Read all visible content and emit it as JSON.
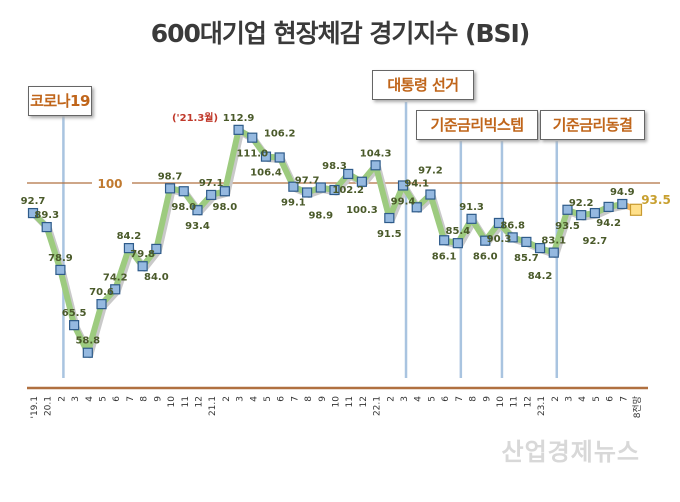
{
  "chart_data": {
    "type": "line",
    "title": "600대기업 현장체감 경기지수 (BSI)",
    "categories": [
      "'19.1",
      "20.1",
      "2",
      "3",
      "4",
      "5",
      "6",
      "7",
      "8",
      "9",
      "10",
      "11",
      "12",
      "21.1",
      "2",
      "3",
      "4",
      "5",
      "6",
      "7",
      "8",
      "9",
      "10",
      "11",
      "12",
      "22.1",
      "2",
      "3",
      "4",
      "5",
      "6",
      "7",
      "8",
      "9",
      "10",
      "11",
      "12",
      "23.1",
      "2",
      "3",
      "4",
      "5",
      "6",
      "7",
      "8전망"
    ],
    "values": [
      92.7,
      89.3,
      78.9,
      65.5,
      58.8,
      70.6,
      74.2,
      84.2,
      79.8,
      84.0,
      98.7,
      98.0,
      93.4,
      97.1,
      98.0,
      112.9,
      111.0,
      106.4,
      106.2,
      99.1,
      97.7,
      98.9,
      98.3,
      102.2,
      100.3,
      104.3,
      91.5,
      99.4,
      94.1,
      97.2,
      86.1,
      85.4,
      91.3,
      86.0,
      90.3,
      86.8,
      85.7,
      84.2,
      83.1,
      93.5,
      92.2,
      92.7,
      94.2,
      94.9,
      93.5
    ],
    "forecast_last_point": true,
    "ylim": [
      50,
      125
    ],
    "reference_line": {
      "value": 100,
      "label": "100",
      "color": "#b07a4a"
    },
    "peak_annotation": {
      "category_index": 15,
      "label": "('21.3월)",
      "color": "#c0392b"
    },
    "events": [
      {
        "label": "코로나19",
        "category_indices": [
          2
        ]
      },
      {
        "label": "대통령 선거",
        "category_indices": [
          27
        ]
      },
      {
        "label": "기준금리빅스텝",
        "category_indices": [
          31,
          34
        ]
      },
      {
        "label": "기준금리동결",
        "category_indices": [
          38
        ]
      }
    ],
    "colors": {
      "line": "#9dcb7f",
      "marker": "#95b9e0",
      "marker_border": "#2e5b8a",
      "forecast_marker": "#ffe08a",
      "forecast_line": "#f4b860",
      "label": "#4a5a2a",
      "event_label": "#c0651a",
      "axis": "#b07040",
      "event_line": "#a9c4e0"
    },
    "grid": false,
    "legend": "none"
  },
  "watermark": "산업경제뉴스"
}
